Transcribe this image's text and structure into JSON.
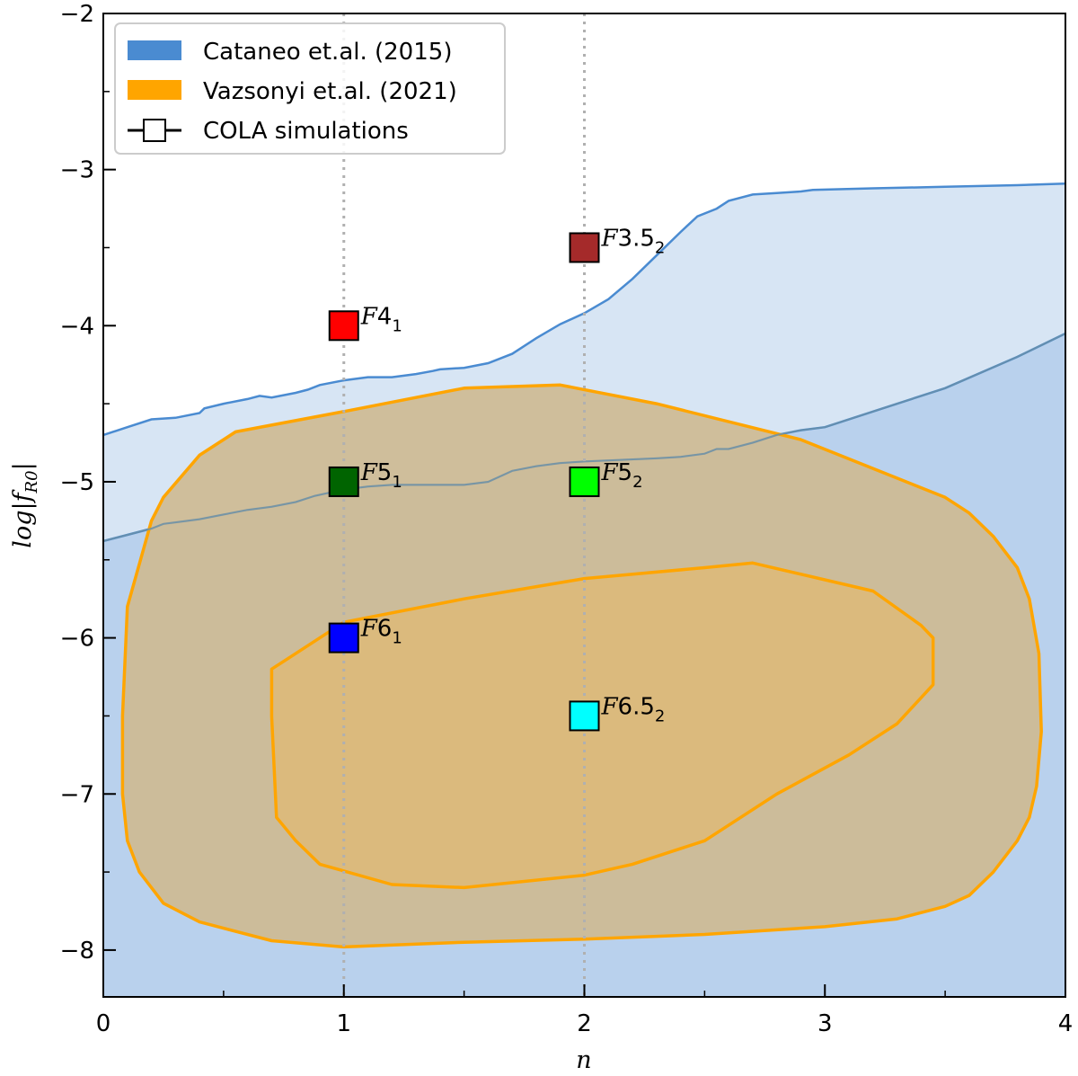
{
  "chart_data": {
    "type": "area",
    "xlabel": "n",
    "ylabel": "log|f_R0|",
    "xlim": [
      0,
      4
    ],
    "ylim": [
      -8.3,
      -2
    ],
    "x_ticks": [
      0,
      1,
      2,
      3,
      4
    ],
    "y_ticks": [
      -8,
      -7,
      -6,
      -5,
      -4,
      -3,
      -2
    ],
    "x_tick_labels": [
      "0",
      "1",
      "2",
      "3",
      "4"
    ],
    "y_tick_labels": [
      "−8",
      "−7",
      "−6",
      "−5",
      "−4",
      "−3",
      "−2"
    ],
    "grid": false,
    "vertical_reference_lines": [
      1,
      2
    ],
    "legend": {
      "placement": "top-left",
      "entries": [
        {
          "label": "Cataneo et.al. (2015)",
          "kind": "patch",
          "color": "#4a8bd1"
        },
        {
          "label": "Vazsonyi et.al. (2021)",
          "kind": "patch",
          "color": "#ffa500"
        },
        {
          "label": "COLA simulations",
          "kind": "marker",
          "color": "#ffffff"
        }
      ]
    },
    "cataneo_regions": [
      {
        "level": "2-sigma",
        "boundary": [
          [
            0,
            -4.7
          ],
          [
            0.1,
            -4.65
          ],
          [
            0.2,
            -4.6
          ],
          [
            0.3,
            -4.59
          ],
          [
            0.4,
            -4.56
          ],
          [
            0.42,
            -4.53
          ],
          [
            0.5,
            -4.5
          ],
          [
            0.6,
            -4.47
          ],
          [
            0.65,
            -4.45
          ],
          [
            0.7,
            -4.46
          ],
          [
            0.8,
            -4.43
          ],
          [
            0.85,
            -4.41
          ],
          [
            0.9,
            -4.38
          ],
          [
            1.0,
            -4.35
          ],
          [
            1.1,
            -4.33
          ],
          [
            1.2,
            -4.33
          ],
          [
            1.3,
            -4.31
          ],
          [
            1.37,
            -4.29
          ],
          [
            1.4,
            -4.28
          ],
          [
            1.5,
            -4.27
          ],
          [
            1.6,
            -4.24
          ],
          [
            1.7,
            -4.18
          ],
          [
            1.8,
            -4.08
          ],
          [
            1.9,
            -3.99
          ],
          [
            2.0,
            -3.92
          ],
          [
            2.1,
            -3.83
          ],
          [
            2.2,
            -3.7
          ],
          [
            2.3,
            -3.55
          ],
          [
            2.4,
            -3.4
          ],
          [
            2.47,
            -3.3
          ],
          [
            2.55,
            -3.25
          ],
          [
            2.6,
            -3.2
          ],
          [
            2.7,
            -3.16
          ],
          [
            2.8,
            -3.15
          ],
          [
            2.9,
            -3.14
          ],
          [
            2.95,
            -3.13
          ],
          [
            3.2,
            -3.12
          ],
          [
            3.5,
            -3.11
          ],
          [
            3.8,
            -3.1
          ],
          [
            4.0,
            -3.09
          ]
        ],
        "fill": "#d7e5f4",
        "edge": "#4a8bd1"
      },
      {
        "level": "1-sigma",
        "boundary": [
          [
            0,
            -5.38
          ],
          [
            0.1,
            -5.34
          ],
          [
            0.2,
            -5.3
          ],
          [
            0.25,
            -5.27
          ],
          [
            0.3,
            -5.26
          ],
          [
            0.4,
            -5.24
          ],
          [
            0.5,
            -5.21
          ],
          [
            0.6,
            -5.18
          ],
          [
            0.7,
            -5.16
          ],
          [
            0.8,
            -5.13
          ],
          [
            0.88,
            -5.09
          ],
          [
            1.0,
            -5.05
          ],
          [
            1.1,
            -5.03
          ],
          [
            1.2,
            -5.02
          ],
          [
            1.3,
            -5.02
          ],
          [
            1.5,
            -5.02
          ],
          [
            1.6,
            -5.0
          ],
          [
            1.7,
            -4.93
          ],
          [
            1.8,
            -4.9
          ],
          [
            1.9,
            -4.88
          ],
          [
            2.0,
            -4.87
          ],
          [
            2.3,
            -4.85
          ],
          [
            2.4,
            -4.84
          ],
          [
            2.5,
            -4.82
          ],
          [
            2.55,
            -4.79
          ],
          [
            2.6,
            -4.79
          ],
          [
            2.7,
            -4.75
          ],
          [
            2.8,
            -4.7
          ],
          [
            2.9,
            -4.67
          ],
          [
            3.0,
            -4.65
          ],
          [
            3.2,
            -4.55
          ],
          [
            3.5,
            -4.4
          ],
          [
            3.8,
            -4.2
          ],
          [
            4.0,
            -4.05
          ]
        ],
        "fill": "#b9d1ed",
        "edge": "#4a8bd1"
      }
    ],
    "vazsonyi_regions": [
      {
        "level": "outer",
        "boundary": [
          [
            0.55,
            -4.68
          ],
          [
            1.0,
            -4.55
          ],
          [
            1.5,
            -4.4
          ],
          [
            1.9,
            -4.38
          ],
          [
            2.3,
            -4.5
          ],
          [
            2.9,
            -4.73
          ],
          [
            3.5,
            -5.1
          ],
          [
            3.6,
            -5.2
          ],
          [
            3.7,
            -5.35
          ],
          [
            3.8,
            -5.55
          ],
          [
            3.85,
            -5.75
          ],
          [
            3.89,
            -6.1
          ],
          [
            3.9,
            -6.6
          ],
          [
            3.88,
            -6.95
          ],
          [
            3.85,
            -7.15
          ],
          [
            3.8,
            -7.3
          ],
          [
            3.7,
            -7.5
          ],
          [
            3.6,
            -7.65
          ],
          [
            3.5,
            -7.72
          ],
          [
            3.3,
            -7.8
          ],
          [
            3.0,
            -7.85
          ],
          [
            2.5,
            -7.9
          ],
          [
            2.0,
            -7.93
          ],
          [
            1.5,
            -7.95
          ],
          [
            1.0,
            -7.98
          ],
          [
            0.7,
            -7.94
          ],
          [
            0.4,
            -7.82
          ],
          [
            0.25,
            -7.7
          ],
          [
            0.15,
            -7.5
          ],
          [
            0.1,
            -7.3
          ],
          [
            0.08,
            -7.0
          ],
          [
            0.08,
            -6.5
          ],
          [
            0.1,
            -5.8
          ],
          [
            0.2,
            -5.25
          ],
          [
            0.25,
            -5.1
          ],
          [
            0.4,
            -4.83
          ],
          [
            0.55,
            -4.68
          ]
        ],
        "fill": "#ceb88e",
        "edge": "#ffa500"
      },
      {
        "level": "inner",
        "boundary": [
          [
            0.7,
            -6.2
          ],
          [
            0.75,
            -6.15
          ],
          [
            1.0,
            -5.9
          ],
          [
            1.5,
            -5.75
          ],
          [
            2.0,
            -5.62
          ],
          [
            2.5,
            -5.55
          ],
          [
            2.7,
            -5.52
          ],
          [
            3.2,
            -5.7
          ],
          [
            3.4,
            -5.92
          ],
          [
            3.45,
            -6.0
          ],
          [
            3.45,
            -6.3
          ],
          [
            3.3,
            -6.55
          ],
          [
            3.1,
            -6.75
          ],
          [
            2.8,
            -7.0
          ],
          [
            2.5,
            -7.3
          ],
          [
            2.2,
            -7.45
          ],
          [
            2.0,
            -7.52
          ],
          [
            1.5,
            -7.6
          ],
          [
            1.2,
            -7.58
          ],
          [
            0.9,
            -7.45
          ],
          [
            0.8,
            -7.3
          ],
          [
            0.72,
            -7.15
          ],
          [
            0.7,
            -6.5
          ],
          [
            0.7,
            -6.2
          ]
        ],
        "fill": "#ddba79",
        "edge": "#ffa500"
      }
    ],
    "cola_simulations": [
      {
        "name": "F3.5",
        "n_sub": "2",
        "n": 2,
        "log_fR0": -3.5,
        "color": "#a52a2a"
      },
      {
        "name": "F4",
        "n_sub": "1",
        "n": 1,
        "log_fR0": -4,
        "color": "#ff0000"
      },
      {
        "name": "F5",
        "n_sub": "1",
        "n": 1,
        "log_fR0": -5,
        "color": "#006400"
      },
      {
        "name": "F5",
        "n_sub": "2",
        "n": 2,
        "log_fR0": -5,
        "color": "#00ff00"
      },
      {
        "name": "F6",
        "n_sub": "1",
        "n": 1,
        "log_fR0": -6,
        "color": "#0000ff"
      },
      {
        "name": "F6.5",
        "n_sub": "2",
        "n": 2,
        "log_fR0": -6.5,
        "color": "#00ffff"
      }
    ]
  }
}
